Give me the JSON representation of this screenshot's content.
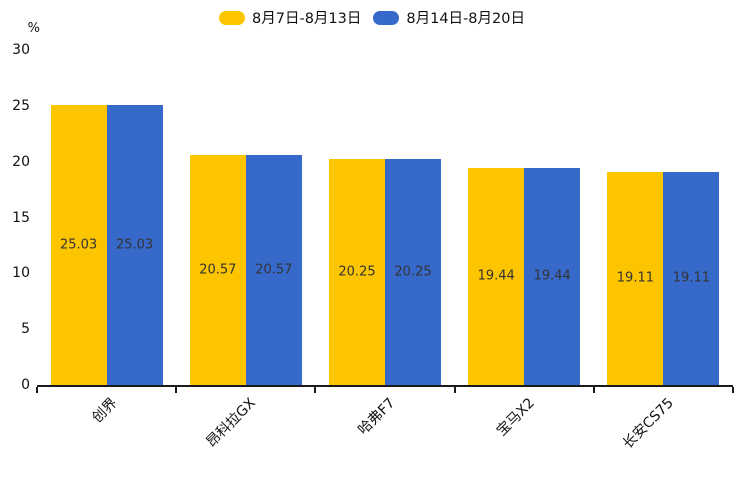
{
  "chart_data": {
    "type": "bar",
    "title": "",
    "categories": [
      "创界",
      "昂科拉GX",
      "哈弗F7",
      "宝马X2",
      "长安CS75"
    ],
    "series": [
      {
        "name": "8月7日-8月13日",
        "color": "#FDC400",
        "values": [
          25.03,
          20.57,
          20.25,
          19.44,
          19.11
        ]
      },
      {
        "name": "8月14日-8月20日",
        "color": "#3769CB",
        "values": [
          25.03,
          20.57,
          20.25,
          19.44,
          19.11
        ]
      }
    ],
    "value_labels": [
      "25.03",
      "20.57",
      "20.25",
      "19.44",
      "19.11"
    ],
    "xlabel": "",
    "ylabel": "%",
    "ylim": [
      0,
      30
    ],
    "yticks": [
      0,
      5,
      10,
      15,
      20,
      25,
      30
    ],
    "grid": false,
    "legend_position": "top",
    "value_label_color": "#333333",
    "axis_color": "#1a1a1a"
  }
}
